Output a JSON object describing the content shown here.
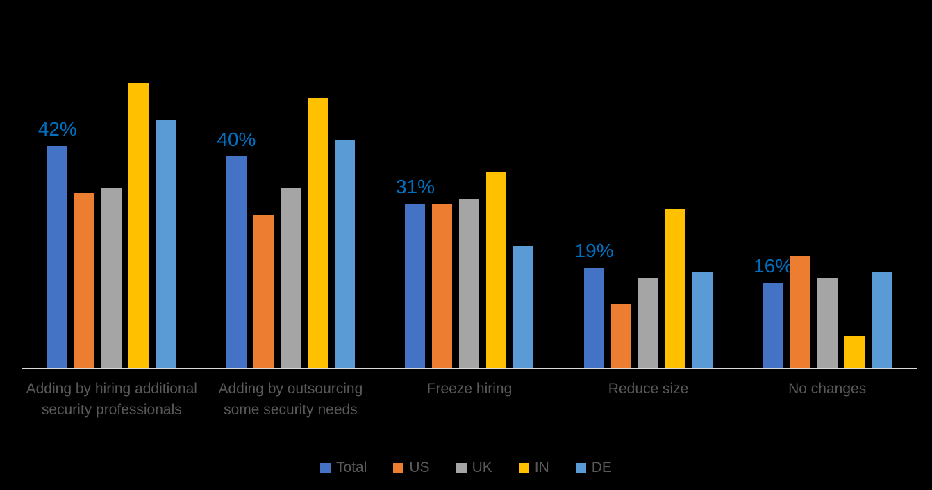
{
  "chart_data": {
    "type": "bar",
    "title": "",
    "categories": [
      "Adding by hiring additional security professionals",
      "Adding by outsourcing some security needs",
      "Freeze hiring",
      "Reduce size",
      "No changes"
    ],
    "series": [
      {
        "name": "Total",
        "color": "#4472C4",
        "values": [
          42,
          40,
          31,
          19,
          16
        ]
      },
      {
        "name": "US",
        "color": "#ED7D31",
        "values": [
          33,
          29,
          31,
          12,
          21
        ]
      },
      {
        "name": "UK",
        "color": "#A5A5A5",
        "values": [
          34,
          34,
          32,
          17,
          17
        ]
      },
      {
        "name": "IN",
        "color": "#FFC000",
        "values": [
          54,
          51,
          37,
          30,
          6
        ]
      },
      {
        "name": "DE",
        "color": "#5B9BD5",
        "values": [
          47,
          43,
          23,
          18,
          18
        ]
      }
    ],
    "data_labels": {
      "series": "Total",
      "labels": [
        "42%",
        "40%",
        "31%",
        "19%",
        "16%"
      ],
      "color": "#0070C0"
    },
    "xlabel": "",
    "ylabel": "",
    "ylim": [
      0,
      60
    ],
    "grid": false,
    "value_axis_visible": false,
    "legend_position": "bottom",
    "legend_items": [
      "Total",
      "US",
      "UK",
      "IN",
      "DE"
    ],
    "colors": {
      "background": "#000000",
      "axis_line": "#D9D9D9",
      "category_text": "#595959",
      "legend_text": "#595959",
      "data_label_text": "#0070C0"
    }
  }
}
